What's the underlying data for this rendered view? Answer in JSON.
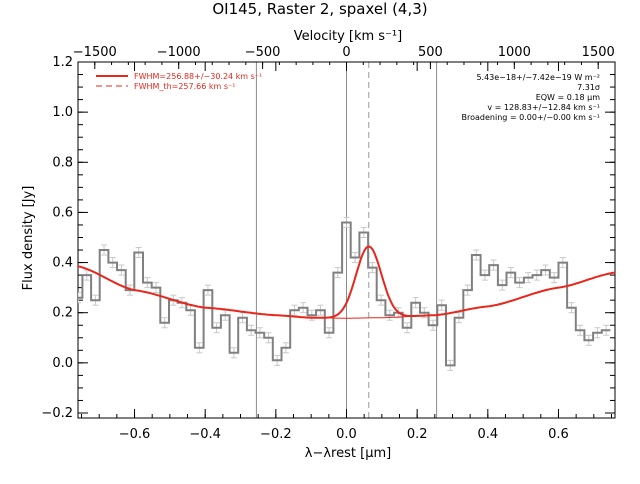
{
  "chart_data": {
    "type": "line",
    "title": "OI145, Raster 2, spaxel (4,3)",
    "xlabel": "λ−λrest [μm]",
    "ylabel": "Flux density [Jy]",
    "top_axis_label": "Velocity [km s⁻¹]",
    "xlim": [
      -0.76,
      0.76
    ],
    "ylim": [
      -0.22,
      1.2
    ],
    "top_xlim": [
      -1600,
      1600
    ],
    "x_ticks": [
      -0.6,
      -0.4,
      -0.2,
      0.0,
      0.2,
      0.4,
      0.6
    ],
    "x_tick_labels": [
      "−0.6",
      "−0.4",
      "−0.2",
      "0.0",
      "0.2",
      "0.4",
      "0.6"
    ],
    "y_ticks": [
      -0.2,
      0.0,
      0.2,
      0.4,
      0.6,
      0.8,
      1.0,
      1.2
    ],
    "y_tick_labels": [
      "−0.2",
      "0.0",
      "0.2",
      "0.4",
      "0.6",
      "0.8",
      "1.0",
      "1.2"
    ],
    "top_ticks": [
      -1500,
      -1000,
      -500,
      0,
      500,
      1000,
      1500
    ],
    "top_tick_labels": [
      "−1500",
      "−1000",
      "−500",
      "0",
      "500",
      "1000",
      "1500"
    ],
    "vlines_solid": [
      -0.255,
      0.0,
      0.255
    ],
    "vline_dashed": 0.063,
    "legend": [
      {
        "label": "FWHM=256.88+/−30.24 km s⁻¹",
        "style": "solid",
        "color": "#e8261c"
      },
      {
        "label": "FWHM_th=257.66 km s⁻¹",
        "style": "dashed",
        "color": "#e8261c"
      }
    ],
    "annotations": [
      "5.43e−18+/−7.42e−19 W m⁻²",
      "7.31σ",
      "EQW = 0.18 μm",
      "v = 128.83+/−12.84 km s⁻¹",
      "Broadening = 0.00+/−0.00 km s⁻¹"
    ],
    "spectrum": {
      "name": "data",
      "color": "#808080",
      "bin_width": 0.0245,
      "x_start": -0.772,
      "values": [
        0.26,
        0.35,
        0.25,
        0.45,
        0.4,
        0.37,
        0.29,
        0.44,
        0.32,
        0.3,
        0.16,
        0.25,
        0.24,
        0.21,
        0.06,
        0.29,
        0.14,
        0.19,
        0.04,
        0.18,
        0.13,
        0.12,
        0.1,
        0.01,
        0.06,
        0.21,
        0.22,
        0.19,
        0.21,
        0.12,
        0.36,
        0.56,
        0.42,
        0.52,
        0.38,
        0.25,
        0.19,
        0.2,
        0.14,
        0.24,
        0.2,
        0.15,
        0.23,
        -0.01,
        0.18,
        0.29,
        0.43,
        0.35,
        0.39,
        0.31,
        0.36,
        0.32,
        0.34,
        0.35,
        0.37,
        0.34,
        0.4,
        0.22,
        0.13,
        0.09,
        0.12,
        0.13
      ],
      "error": 0.02
    },
    "fit": {
      "name": "fit",
      "color": "#e8261c",
      "baseline_points": [
        [
          -0.76,
          0.385
        ],
        [
          -0.6,
          0.29
        ],
        [
          -0.4,
          0.22
        ],
        [
          -0.2,
          0.19
        ],
        [
          -0.1,
          0.18
        ],
        [
          0.0,
          0.178
        ],
        [
          0.1,
          0.18
        ],
        [
          0.25,
          0.19
        ],
        [
          0.4,
          0.225
        ],
        [
          0.6,
          0.3
        ],
        [
          0.76,
          0.36
        ]
      ],
      "gaussian": {
        "center": 0.063,
        "amplitude": 0.285,
        "sigma": 0.036,
        "range": [
          -0.1,
          0.25
        ]
      }
    }
  }
}
